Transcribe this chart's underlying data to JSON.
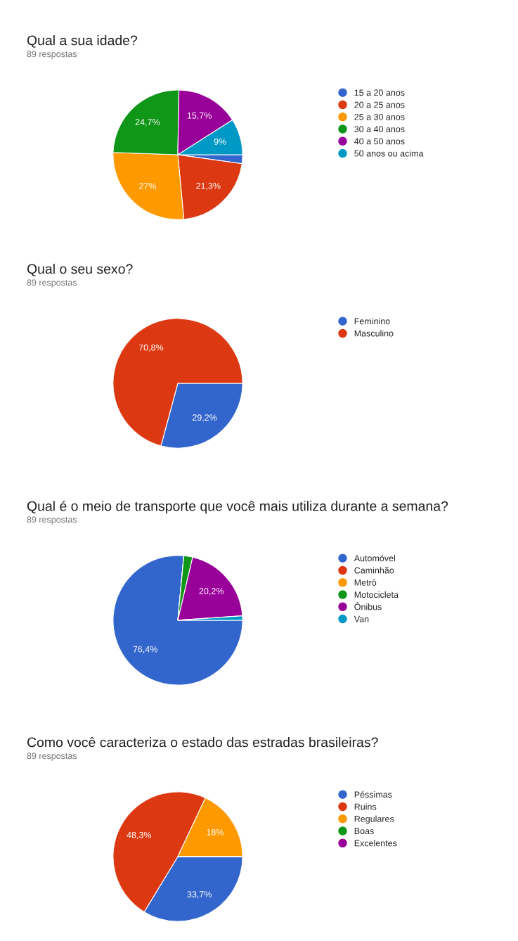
{
  "chart_data": [
    {
      "type": "pie",
      "title": "Qual a sua idade?",
      "subtitle": "89 respostas",
      "legend": "right",
      "categories": [
        "15 a 20 anos",
        "20 a 25 anos",
        "25 a 30 anos",
        "30 a 40 anos",
        "40 a 50 anos",
        "50 anos ou acima"
      ],
      "values": [
        2.2,
        21.3,
        27,
        24.7,
        15.7,
        9
      ],
      "value_labels": [
        null,
        "21,3%",
        "27%",
        "24,7%",
        "15,7%",
        "9%"
      ],
      "colors": [
        "#3366cc",
        "#dc3912",
        "#ff9900",
        "#109618",
        "#990099",
        "#0099c6"
      ]
    },
    {
      "type": "pie",
      "title": "Qual o seu sexo?",
      "subtitle": "89 respostas",
      "legend": "right",
      "categories": [
        "Feminino",
        "Masculino"
      ],
      "values": [
        29.2,
        70.8
      ],
      "value_labels": [
        "29,2%",
        "70,8%"
      ],
      "colors": [
        "#3366cc",
        "#dc3912"
      ]
    },
    {
      "type": "pie",
      "title": "Qual é o meio de transporte que você mais utiliza durante a semana?",
      "subtitle": "89 respostas",
      "legend": "right",
      "categories": [
        "Automóvel",
        "Caminhão",
        "Metrô",
        "Motocicleta",
        "Ônibus",
        "Van"
      ],
      "values": [
        76.4,
        0,
        0,
        2.2,
        20.2,
        1.1
      ],
      "value_labels": [
        "76,4%",
        null,
        null,
        null,
        "20,2%",
        null
      ],
      "colors": [
        "#3366cc",
        "#dc3912",
        "#ff9900",
        "#109618",
        "#990099",
        "#0099c6"
      ]
    },
    {
      "type": "pie",
      "title": "Como você caracteriza o estado das estradas brasileiras?",
      "subtitle": "89 respostas",
      "legend": "right",
      "categories": [
        "Péssimas",
        "Ruins",
        "Regulares",
        "Boas",
        "Excelentes"
      ],
      "values": [
        33.7,
        48.3,
        18,
        0,
        0
      ],
      "value_labels": [
        "33,7%",
        "48,3%",
        "18%",
        null,
        null
      ],
      "colors": [
        "#3366cc",
        "#dc3912",
        "#ff9900",
        "#109618",
        "#990099"
      ]
    }
  ]
}
